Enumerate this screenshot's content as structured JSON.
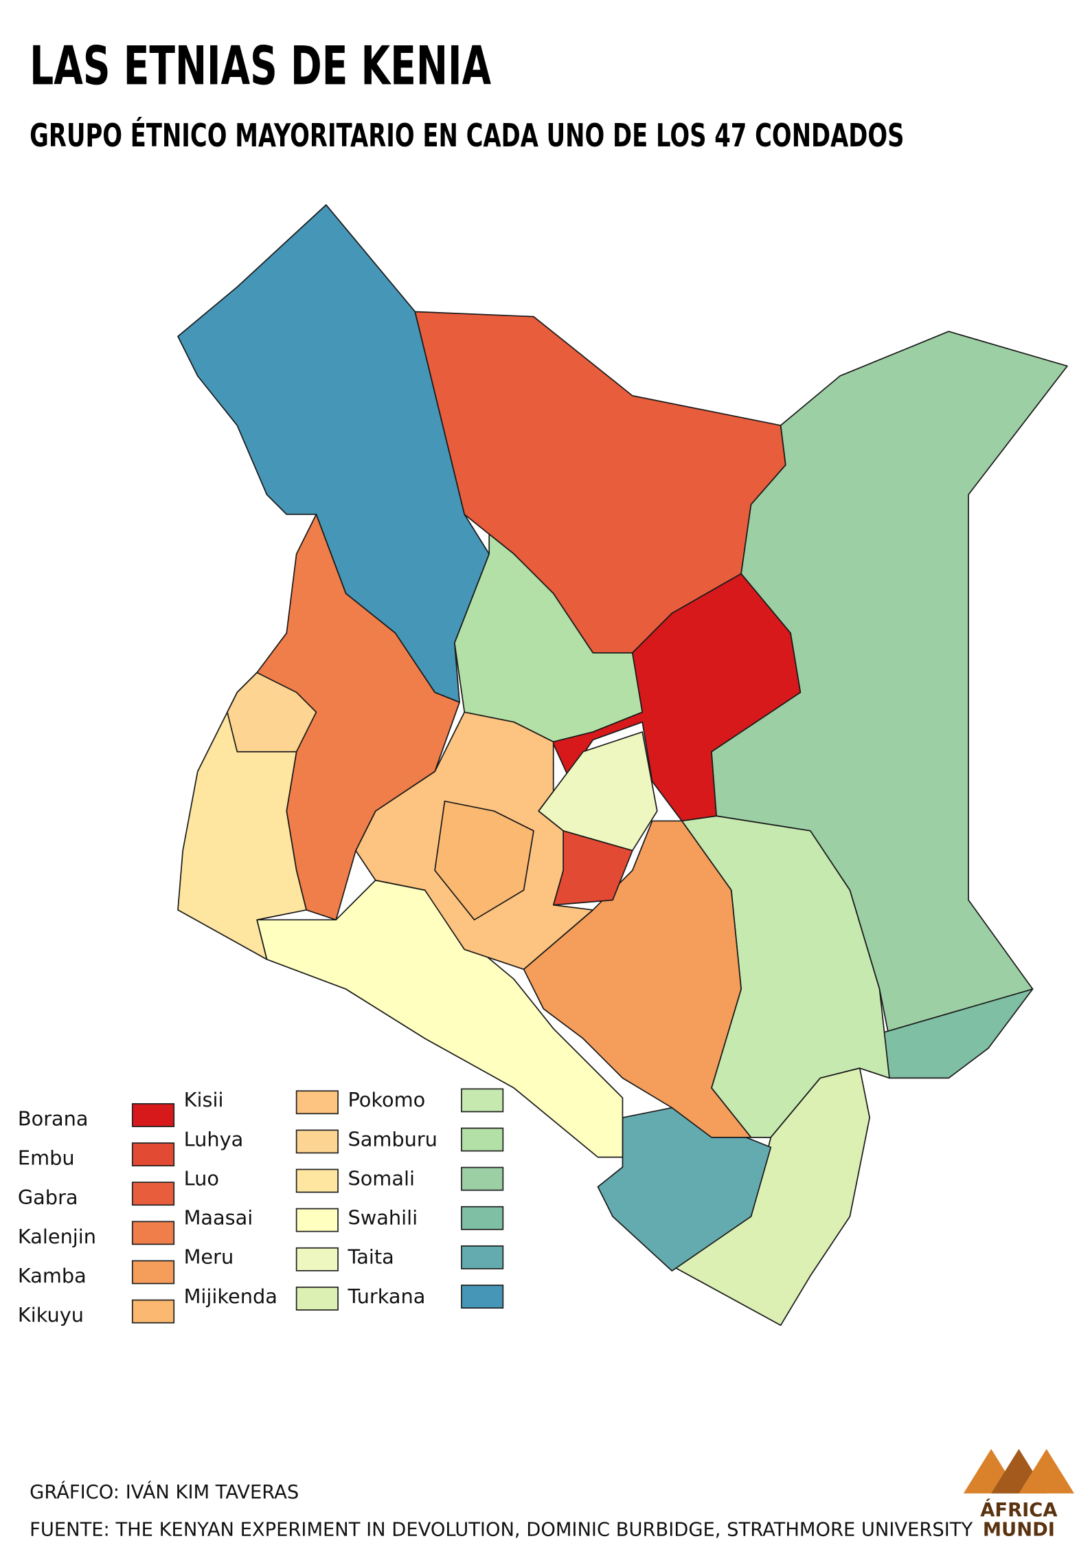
{
  "header": {
    "title": "LAS ETNIAS DE KENIA",
    "subtitle": "GRUPO ÉTNICO MAYORITARIO EN CADA UNO DE LOS 47 CONDADOS"
  },
  "legend": [
    {
      "name": "Borana",
      "color": "#d7191c"
    },
    {
      "name": "Embu",
      "color": "#e34a33"
    },
    {
      "name": "Gabra",
      "color": "#e85d3c"
    },
    {
      "name": "Kalenjin",
      "color": "#f07e4a"
    },
    {
      "name": "Kamba",
      "color": "#f59e5c"
    },
    {
      "name": "Kikuyu",
      "color": "#fbb870"
    },
    {
      "name": "Kisii",
      "color": "#fdc380"
    },
    {
      "name": "Luhya",
      "color": "#fdd491"
    },
    {
      "name": "Luo",
      "color": "#fee6a0"
    },
    {
      "name": "Maasai",
      "color": "#ffffbf"
    },
    {
      "name": "Meru",
      "color": "#eef7c0"
    },
    {
      "name": "Mijikenda",
      "color": "#dcf0b3"
    },
    {
      "name": "Pokomo",
      "color": "#c6e9b0"
    },
    {
      "name": "Samburu",
      "color": "#b3e0a6"
    },
    {
      "name": "Somali",
      "color": "#9ccfa4"
    },
    {
      "name": "Swahili",
      "color": "#7fbfa4"
    },
    {
      "name": "Taita",
      "color": "#64abb0"
    },
    {
      "name": "Turkana",
      "color": "#4596b7"
    }
  ],
  "footer": {
    "credit": "GRÁFICO: IVÁN KIM TAVERAS",
    "source": "FUENTE: THE KENYAN EXPERIMENT IN DEVOLUTION, DOMINIC BURBIDGE, STRATHMORE UNIVERSITY"
  },
  "logo": {
    "line1": "ÁFRICA",
    "line2": "MUNDI"
  }
}
